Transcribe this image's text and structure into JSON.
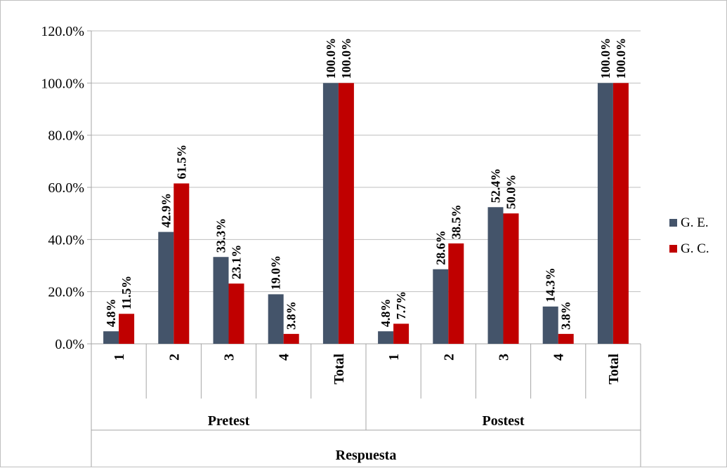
{
  "chart_data": {
    "type": "bar",
    "title": "",
    "xlabel": "Respuesta",
    "ylabel": "",
    "ylim": [
      0,
      120
    ],
    "y_ticks": [
      "0.0%",
      "20.0%",
      "40.0%",
      "60.0%",
      "80.0%",
      "100.0%",
      "120.0%"
    ],
    "grid": true,
    "legend_position": "right",
    "groups": [
      {
        "label": "Pretest",
        "categories": [
          "1",
          "2",
          "3",
          "4",
          "Total"
        ]
      },
      {
        "label": "Postest",
        "categories": [
          "1",
          "2",
          "3",
          "4",
          "Total"
        ]
      }
    ],
    "series": [
      {
        "name": "G. E.",
        "color": "#44546A",
        "values": [
          4.8,
          42.9,
          33.3,
          19.0,
          100.0,
          4.8,
          28.6,
          52.4,
          14.3,
          100.0
        ],
        "labels": [
          "4.8%",
          "42.9%",
          "33.3%",
          "19.0%",
          "100.0%",
          "4.8%",
          "28.6%",
          "52.4%",
          "14.3%",
          "100.0%"
        ]
      },
      {
        "name": "G. C.",
        "color": "#C00000",
        "values": [
          11.5,
          61.5,
          23.1,
          3.8,
          100.0,
          7.7,
          38.5,
          50.0,
          3.8,
          100.0
        ],
        "labels": [
          "11.5%",
          "61.5%",
          "23.1%",
          "3.8%",
          "100.0%",
          "7.7%",
          "38.5%",
          "50.0%",
          "3.8%",
          "100.0%"
        ]
      }
    ]
  }
}
